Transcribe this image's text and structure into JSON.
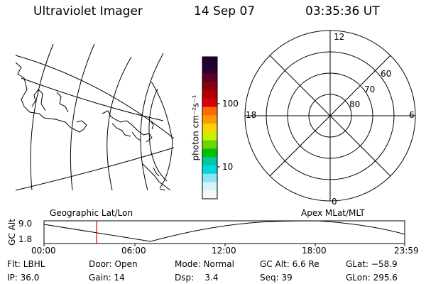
{
  "header": {
    "instrument": "Ultraviolet Imager",
    "date": "14 Sep 07",
    "time": "03:35:36 UT"
  },
  "geo_map": {
    "icon": "coastline-map-icon"
  },
  "colorbar": {
    "unit_label": "photon cm⁻²s⁻¹",
    "ticks": [
      "100",
      "10"
    ],
    "colors": [
      "#1a0030",
      "#2a0033",
      "#5a0025",
      "#8a0010",
      "#b00000",
      "#d8000a",
      "#ff6a00",
      "#ff9a00",
      "#ffd200",
      "#c8f000",
      "#6ad800",
      "#00c000",
      "#00c8a0",
      "#00d8e0",
      "#8ae6f0",
      "#d8f2f6",
      "#f0f8fa"
    ]
  },
  "polar": {
    "mlt_labels": [
      "12",
      "18",
      "6",
      "0"
    ],
    "lat_labels": [
      "60",
      "70",
      "80"
    ]
  },
  "timeline": {
    "left_label": "Geographic Lat/Lon",
    "right_label": "Apex MLat/MLT",
    "ylabel": "GC Alt",
    "ytick_top": "9.0",
    "ytick_bottom": "1.8",
    "xticks": [
      "00:00",
      "06:00",
      "12:00",
      "18:00",
      "23:59"
    ],
    "marker_color": "#e00000"
  },
  "footer": {
    "row1": [
      "Flt: LBHL",
      "Door: Open",
      "Mode: Normal",
      "GC Alt: 6.6 Re",
      "GLat: −58.9"
    ],
    "row2": [
      "IP: 36.0",
      "Gain: 14",
      "Dsp:    3.4",
      "Seq: 39",
      "GLon: 295.6"
    ]
  }
}
